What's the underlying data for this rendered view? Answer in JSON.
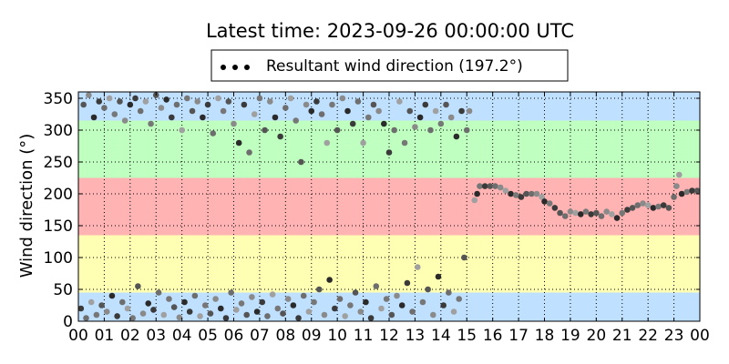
{
  "chart_data": {
    "type": "scatter",
    "title": "Latest time: 2023-09-26 00:00:00 UTC",
    "xlabel": "",
    "ylabel": "Wind direction (°)",
    "xlim": [
      0,
      24
    ],
    "ylim": [
      0,
      360
    ],
    "x_tick_labels": [
      "00",
      "01",
      "02",
      "03",
      "04",
      "05",
      "06",
      "07",
      "08",
      "09",
      "10",
      "11",
      "12",
      "13",
      "14",
      "15",
      "16",
      "17",
      "18",
      "19",
      "20",
      "21",
      "22",
      "23",
      "00"
    ],
    "y_ticks": [
      0,
      50,
      100,
      150,
      200,
      250,
      300,
      350
    ],
    "grid": true,
    "legend_position": "top-center",
    "bands": [
      {
        "from": 0,
        "to": 45,
        "color": "#bfe0ff"
      },
      {
        "from": 45,
        "to": 135,
        "color": "#ffffb3"
      },
      {
        "from": 135,
        "to": 225,
        "color": "#ffb3b3"
      },
      {
        "from": 225,
        "to": 315,
        "color": "#bfffbf"
      },
      {
        "from": 315,
        "to": 360,
        "color": "#bfe0ff"
      }
    ],
    "series": [
      {
        "name": "Resultant wind direction (197.2°)",
        "color": "#555555",
        "points": [
          [
            0.1,
            20
          ],
          [
            0.2,
            340
          ],
          [
            0.3,
            5
          ],
          [
            0.4,
            355
          ],
          [
            0.5,
            30
          ],
          [
            0.6,
            320
          ],
          [
            0.7,
            10
          ],
          [
            0.8,
            345
          ],
          [
            0.9,
            25
          ],
          [
            1.0,
            335
          ],
          [
            1.1,
            15
          ],
          [
            1.2,
            350
          ],
          [
            1.3,
            40
          ],
          [
            1.4,
            325
          ],
          [
            1.5,
            8
          ],
          [
            1.6,
            345
          ],
          [
            1.7,
            30
          ],
          [
            1.8,
            315
          ],
          [
            1.9,
            20
          ],
          [
            2.0,
            340
          ],
          [
            2.1,
            5
          ],
          [
            2.2,
            350
          ],
          [
            2.3,
            55
          ],
          [
            2.4,
            330
          ],
          [
            2.5,
            12
          ],
          [
            2.6,
            345
          ],
          [
            2.7,
            28
          ],
          [
            2.8,
            310
          ],
          [
            2.9,
            18
          ],
          [
            3.0,
            355
          ],
          [
            3.1,
            45
          ],
          [
            3.2,
            335
          ],
          [
            3.3,
            10
          ],
          [
            3.4,
            348
          ],
          [
            3.5,
            35
          ],
          [
            3.6,
            320
          ],
          [
            3.7,
            22
          ],
          [
            3.8,
            340
          ],
          [
            3.9,
            6
          ],
          [
            4.0,
            300
          ],
          [
            4.1,
            30
          ],
          [
            4.2,
            350
          ],
          [
            4.3,
            15
          ],
          [
            4.4,
            330
          ],
          [
            4.5,
            40
          ],
          [
            4.6,
            345
          ],
          [
            4.7,
            8
          ],
          [
            4.8,
            320
          ],
          [
            4.9,
            25
          ],
          [
            5.0,
            340
          ],
          [
            5.1,
            12
          ],
          [
            5.2,
            295
          ],
          [
            5.3,
            35
          ],
          [
            5.4,
            350
          ],
          [
            5.5,
            20
          ],
          [
            5.6,
            330
          ],
          [
            5.7,
            5
          ],
          [
            5.8,
            345
          ],
          [
            5.9,
            45
          ],
          [
            6.0,
            310
          ],
          [
            6.1,
            18
          ],
          [
            6.2,
            280
          ],
          [
            6.3,
            28
          ],
          [
            6.4,
            340
          ],
          [
            6.5,
            10
          ],
          [
            6.6,
            265
          ],
          [
            6.7,
            38
          ],
          [
            6.8,
            325
          ],
          [
            6.9,
            15
          ],
          [
            7.0,
            350
          ],
          [
            7.1,
            30
          ],
          [
            7.2,
            300
          ],
          [
            7.3,
            8
          ],
          [
            7.4,
            345
          ],
          [
            7.5,
            42
          ],
          [
            7.6,
            320
          ],
          [
            7.7,
            20
          ],
          [
            7.8,
            290
          ],
          [
            7.9,
            12
          ],
          [
            8.0,
            335
          ],
          [
            8.1,
            35
          ],
          [
            8.2,
            350
          ],
          [
            8.3,
            25
          ],
          [
            8.4,
            315
          ],
          [
            8.5,
            5
          ],
          [
            8.6,
            250
          ],
          [
            8.7,
            40
          ],
          [
            8.8,
            340
          ],
          [
            8.9,
            15
          ],
          [
            9.0,
            330
          ],
          [
            9.1,
            30
          ],
          [
            9.2,
            345
          ],
          [
            9.3,
            50
          ],
          [
            9.4,
            325
          ],
          [
            9.5,
            10
          ],
          [
            9.6,
            280
          ],
          [
            9.7,
            65
          ],
          [
            9.8,
            340
          ],
          [
            9.9,
            20
          ],
          [
            10.0,
            300
          ],
          [
            10.1,
            35
          ],
          [
            10.2,
            350
          ],
          [
            10.3,
            8
          ],
          [
            10.4,
            330
          ],
          [
            10.5,
            25
          ],
          [
            10.6,
            310
          ],
          [
            10.7,
            45
          ],
          [
            10.8,
            345
          ],
          [
            10.9,
            15
          ],
          [
            11.0,
            280
          ],
          [
            11.1,
            30
          ],
          [
            11.2,
            320
          ],
          [
            11.3,
            5
          ],
          [
            11.4,
            340
          ],
          [
            11.5,
            55
          ],
          [
            11.6,
            330
          ],
          [
            11.7,
            20
          ],
          [
            11.8,
            310
          ],
          [
            11.9,
            35
          ],
          [
            12.0,
            265
          ],
          [
            12.1,
            10
          ],
          [
            12.2,
            300
          ],
          [
            12.3,
            40
          ],
          [
            12.4,
            345
          ],
          [
            12.5,
            25
          ],
          [
            12.6,
            280
          ],
          [
            12.7,
            60
          ],
          [
            12.8,
            330
          ],
          [
            12.9,
            15
          ],
          [
            13.0,
            305
          ],
          [
            13.1,
            85
          ],
          [
            13.2,
            320
          ],
          [
            13.3,
            30
          ],
          [
            13.4,
            340
          ],
          [
            13.5,
            50
          ],
          [
            13.6,
            300
          ],
          [
            13.7,
            10
          ],
          [
            13.8,
            330
          ],
          [
            13.9,
            70
          ],
          [
            14.0,
            310
          ],
          [
            14.1,
            25
          ],
          [
            14.2,
            340
          ],
          [
            14.3,
            45
          ],
          [
            14.4,
            320
          ],
          [
            14.5,
            15
          ],
          [
            14.6,
            290
          ],
          [
            14.7,
            35
          ],
          [
            14.8,
            330
          ],
          [
            14.9,
            100
          ],
          [
            15.0,
            300
          ],
          [
            15.1,
            330
          ],
          [
            15.3,
            190
          ],
          [
            15.4,
            200
          ],
          [
            15.5,
            212
          ],
          [
            15.7,
            212
          ],
          [
            15.9,
            212
          ],
          [
            16.1,
            212
          ],
          [
            16.3,
            210
          ],
          [
            16.5,
            205
          ],
          [
            16.7,
            200
          ],
          [
            16.9,
            198
          ],
          [
            17.1,
            195
          ],
          [
            17.3,
            200
          ],
          [
            17.5,
            200
          ],
          [
            17.7,
            200
          ],
          [
            17.9,
            195
          ],
          [
            18.0,
            188
          ],
          [
            18.2,
            185
          ],
          [
            18.4,
            178
          ],
          [
            18.6,
            170
          ],
          [
            18.8,
            165
          ],
          [
            19.0,
            172
          ],
          [
            19.2,
            170
          ],
          [
            19.4,
            168
          ],
          [
            19.6,
            172
          ],
          [
            19.8,
            168
          ],
          [
            20.0,
            170
          ],
          [
            20.2,
            165
          ],
          [
            20.4,
            172
          ],
          [
            20.6,
            168
          ],
          [
            20.8,
            162
          ],
          [
            21.0,
            170
          ],
          [
            21.2,
            175
          ],
          [
            21.4,
            178
          ],
          [
            21.6,
            182
          ],
          [
            21.8,
            185
          ],
          [
            22.0,
            182
          ],
          [
            22.2,
            178
          ],
          [
            22.4,
            180
          ],
          [
            22.6,
            182
          ],
          [
            22.8,
            178
          ],
          [
            23.0,
            195
          ],
          [
            23.1,
            212
          ],
          [
            23.2,
            230
          ],
          [
            23.3,
            200
          ],
          [
            23.5,
            203
          ],
          [
            23.7,
            205
          ],
          [
            23.9,
            205
          ]
        ]
      }
    ]
  }
}
